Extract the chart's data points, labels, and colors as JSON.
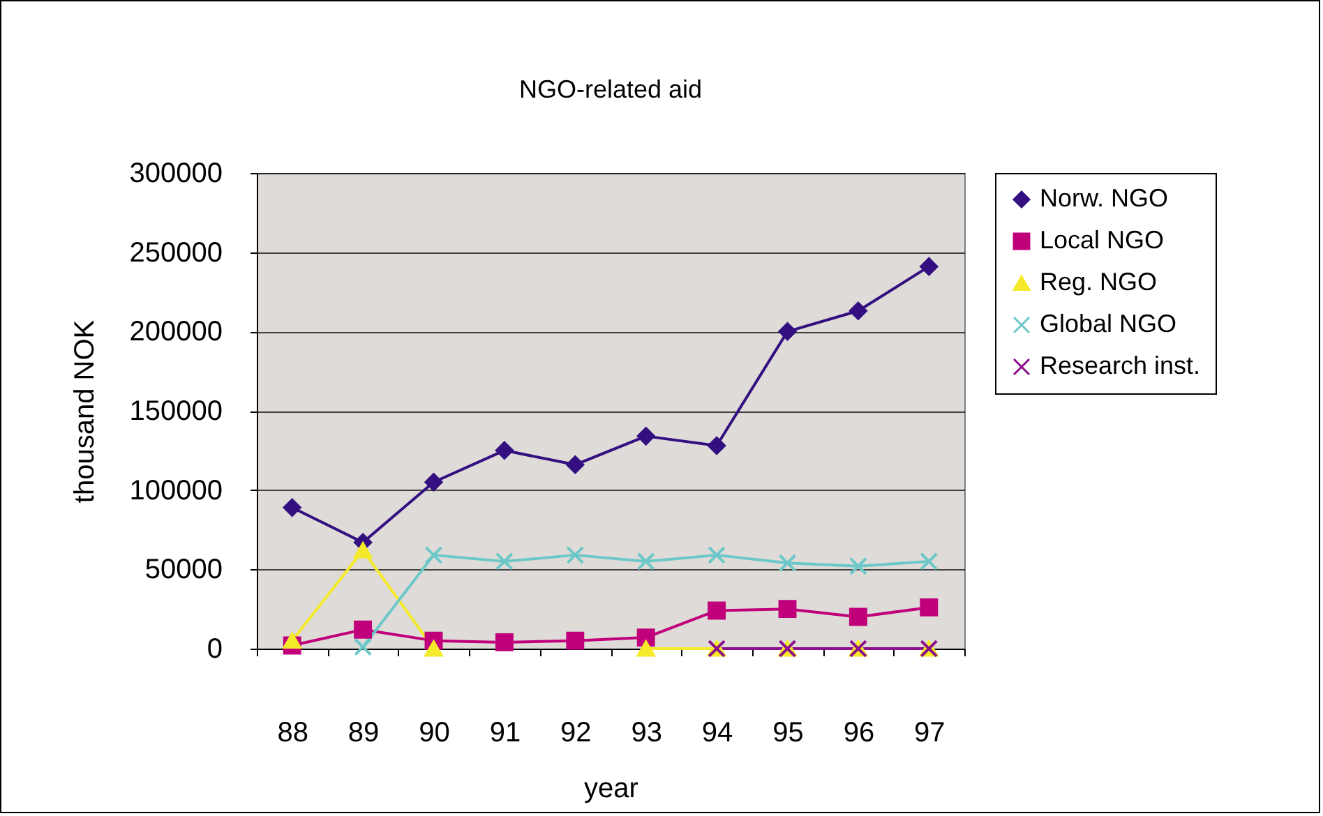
{
  "chart_data": {
    "type": "line",
    "title": "NGO-related aid",
    "xlabel": "year",
    "ylabel": "thousand NOK",
    "categories": [
      "88",
      "89",
      "90",
      "91",
      "92",
      "93",
      "94",
      "95",
      "96",
      "97"
    ],
    "series": [
      {
        "name": "Norw. NGO",
        "color": "#330f80",
        "marker": "diamond",
        "values": [
          89000,
          67000,
          105000,
          125000,
          116000,
          134000,
          128000,
          200000,
          213000,
          241000
        ]
      },
      {
        "name": "Local NGO",
        "color": "#c0007a",
        "marker": "square",
        "values": [
          2000,
          12000,
          5000,
          4000,
          5000,
          7000,
          24000,
          25000,
          20000,
          26000
        ]
      },
      {
        "name": "Reg. NGO",
        "color": "#f5ea2a",
        "marker": "triangle",
        "values": [
          5000,
          62000,
          0,
          null,
          null,
          0,
          0,
          0,
          0,
          0
        ]
      },
      {
        "name": "Global NGO",
        "color": "#6cc8c8",
        "marker": "cross",
        "values": [
          null,
          1000,
          59000,
          55000,
          59000,
          55000,
          59000,
          54000,
          52000,
          55000
        ]
      },
      {
        "name": "Research inst.",
        "color": "#8b0f8b",
        "marker": "cross",
        "values": [
          null,
          null,
          null,
          null,
          null,
          null,
          0,
          0,
          0,
          0
        ]
      }
    ],
    "ylim": [
      0,
      300000
    ],
    "yticks": [
      0,
      50000,
      100000,
      150000,
      200000,
      250000,
      300000
    ],
    "grid": "y",
    "legend": "right"
  }
}
